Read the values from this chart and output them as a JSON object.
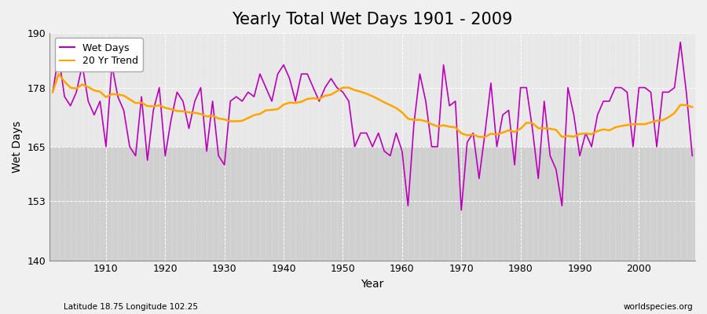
{
  "title": "Yearly Total Wet Days 1901 - 2009",
  "xlabel": "Year",
  "ylabel": "Wet Days",
  "subtitle": "Latitude 18.75 Longitude 102.25",
  "watermark": "worldspecies.org",
  "ylim": [
    140,
    190
  ],
  "yticks": [
    140,
    153,
    165,
    178,
    190
  ],
  "xticks": [
    1910,
    1920,
    1930,
    1940,
    1950,
    1960,
    1970,
    1980,
    1990,
    2000
  ],
  "years": [
    1901,
    1902,
    1903,
    1904,
    1905,
    1906,
    1907,
    1908,
    1909,
    1910,
    1911,
    1912,
    1913,
    1914,
    1915,
    1916,
    1917,
    1918,
    1919,
    1920,
    1921,
    1922,
    1923,
    1924,
    1925,
    1926,
    1927,
    1928,
    1929,
    1930,
    1931,
    1932,
    1933,
    1934,
    1935,
    1936,
    1937,
    1938,
    1939,
    1940,
    1941,
    1942,
    1943,
    1944,
    1945,
    1946,
    1947,
    1948,
    1949,
    1950,
    1951,
    1952,
    1953,
    1954,
    1955,
    1956,
    1957,
    1958,
    1959,
    1960,
    1961,
    1962,
    1963,
    1964,
    1965,
    1966,
    1967,
    1968,
    1969,
    1970,
    1971,
    1972,
    1973,
    1974,
    1975,
    1976,
    1977,
    1978,
    1979,
    1980,
    1981,
    1982,
    1983,
    1984,
    1985,
    1986,
    1987,
    1988,
    1989,
    1990,
    1991,
    1992,
    1993,
    1994,
    1995,
    1996,
    1997,
    1998,
    1999,
    2000,
    2001,
    2002,
    2003,
    2004,
    2005,
    2006,
    2007,
    2008,
    2009
  ],
  "wet_days": [
    177,
    185,
    176,
    174,
    177,
    183,
    175,
    172,
    175,
    165,
    183,
    176,
    173,
    165,
    163,
    176,
    162,
    173,
    178,
    163,
    171,
    177,
    175,
    169,
    175,
    178,
    164,
    175,
    163,
    161,
    175,
    176,
    175,
    177,
    176,
    181,
    178,
    175,
    181,
    183,
    180,
    175,
    181,
    181,
    178,
    175,
    178,
    180,
    178,
    177,
    175,
    165,
    168,
    168,
    165,
    168,
    164,
    163,
    168,
    164,
    152,
    170,
    181,
    175,
    165,
    165,
    183,
    174,
    175,
    151,
    166,
    168,
    158,
    168,
    179,
    165,
    172,
    173,
    161,
    178,
    178,
    169,
    158,
    175,
    163,
    160,
    152,
    178,
    172,
    163,
    168,
    165,
    172,
    175,
    175,
    178,
    178,
    177,
    165,
    178,
    178,
    177,
    165,
    177,
    177,
    178,
    188,
    177,
    163
  ],
  "wet_color": "#BB00BB",
  "trend_color": "#FFA500",
  "fig_bg_color": "#F0F0F0",
  "plot_bg_upper": "#E8E8E8",
  "plot_bg_lower": "#D0D0D0",
  "lower_band_top": 165,
  "grid_color": "#FFFFFF",
  "title_fontsize": 15,
  "axis_fontsize": 10,
  "tick_fontsize": 9,
  "legend_fontsize": 9
}
